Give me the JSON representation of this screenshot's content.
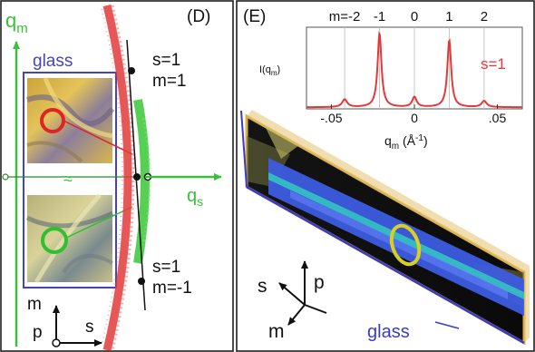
{
  "panel_d": {
    "label": "(D)",
    "axis_qm": "q",
    "axis_qm_sub": "m",
    "axis_qs": "q",
    "axis_qs_sub": "s",
    "glass_label": "glass",
    "break_mark": "≈",
    "spot_upper": {
      "s": "s=1",
      "m": "m=1"
    },
    "spot_lower": {
      "s": "s=1",
      "m": "m=-1"
    },
    "frame_axes": {
      "m": "m",
      "p": "p",
      "s": "s"
    },
    "colors": {
      "qm_axis": "#3cc03c",
      "qs_axis": "#3cc03c",
      "glass_box": "#4444bb",
      "red_data": "#e23a3a",
      "green_data": "#37c837",
      "circle_red": "#e02424",
      "circle_green": "#2fc02f"
    }
  },
  "panel_e": {
    "label": "(E)",
    "glass_label": "glass",
    "frame_axes": {
      "s": "s",
      "p": "p",
      "m": "m"
    },
    "colors": {
      "slab_border": "#d9b04a",
      "glass_line": "#3a3acc",
      "ring": "#d8d020",
      "stripe_blue": "#3d5ce0",
      "stripe_cyan": "#34c9c0"
    }
  },
  "chart_data": {
    "type": "line",
    "title": "",
    "series_label": "s=1",
    "ylabel": "I(q",
    "ylabel_sub": "m",
    "ylabel_end": ")",
    "xlabel": "q",
    "xlabel_sub": "m",
    "xlabel_unit": " (Å",
    "xlabel_unit_sup": "-1",
    "xlabel_end": ")",
    "xlim": [
      -0.065,
      0.065
    ],
    "ylim": [
      0,
      1.05
    ],
    "x_ticks": [
      {
        "value": -0.05,
        "label": "-.05"
      },
      {
        "value": 0,
        "label": "0"
      },
      {
        "value": 0.05,
        "label": ".05"
      }
    ],
    "order_labels": [
      {
        "x": -0.042,
        "label": "m=-2"
      },
      {
        "x": -0.021,
        "label": "-1"
      },
      {
        "x": 0,
        "label": "0"
      },
      {
        "x": 0.021,
        "label": "1"
      },
      {
        "x": 0.042,
        "label": "2"
      }
    ],
    "peaks": [
      {
        "x": -0.042,
        "height": 0.1,
        "width": 0.0018
      },
      {
        "x": -0.021,
        "height": 0.95,
        "width": 0.0014
      },
      {
        "x": 0,
        "height": 0.13,
        "width": 0.0016
      },
      {
        "x": 0.021,
        "height": 0.86,
        "width": 0.0014
      },
      {
        "x": 0.042,
        "height": 0.08,
        "width": 0.0018
      }
    ],
    "baseline": 0.02,
    "line_color": "#e23a3a"
  }
}
